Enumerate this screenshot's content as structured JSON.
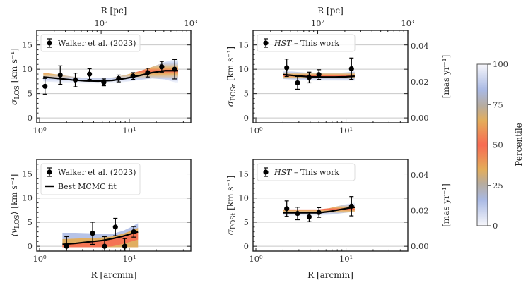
{
  "chart_data": [
    {
      "id": "sigma_los",
      "type": "scatter",
      "ylabel_main": "σ",
      "ylabel_sub": "LOS",
      "ylabel_unit": "[km s⁻¹]",
      "xlabel": "",
      "top_xlabel": "R [pc]",
      "xscale": "log",
      "xlim": [
        0.93,
        48.5
      ],
      "ylim": [
        -1,
        18
      ],
      "yticks": [
        0,
        5,
        10,
        15
      ],
      "xticks": [
        {
          "v": 1,
          "label": "10⁰"
        },
        {
          "v": 10,
          "label": "10¹"
        }
      ],
      "top_xticks": [
        {
          "v": 100,
          "label": "10²"
        },
        {
          "v": 1000,
          "label": "10³"
        }
      ],
      "top_scale_pc_per_arcmin": 20.6,
      "grid": true,
      "legend": [
        "Walker et al. (2023)"
      ],
      "legend_location": "top-left",
      "series": [
        {
          "name": "Walker et al. (2023)",
          "x": [
            1.15,
            1.7,
            2.5,
            3.6,
            5.2,
            7.6,
            11,
            16,
            23,
            32
          ],
          "y": [
            6.5,
            8.8,
            7.8,
            9.0,
            7.3,
            8.1,
            8.6,
            9.3,
            10.5,
            10.0
          ],
          "yerr": [
            1.6,
            1.9,
            1.4,
            1.1,
            0.7,
            0.7,
            0.7,
            0.9,
            1.1,
            2.0
          ]
        },
        {
          "name": "Best MCMC fit",
          "x": [
            1.1,
            1.6,
            2.3,
            3.2,
            4.5,
            6.5,
            9,
            13,
            18,
            25,
            35
          ],
          "y": [
            8.4,
            8.1,
            7.8,
            7.6,
            7.55,
            7.7,
            8.1,
            8.7,
            9.3,
            9.7,
            9.7
          ]
        }
      ],
      "band_halfwidth": [
        0.9,
        0.8,
        0.7,
        0.6,
        0.6,
        0.6,
        0.7,
        0.9,
        1.2,
        1.8,
        2.6
      ]
    },
    {
      "id": "sigma_posr",
      "type": "scatter",
      "ylabel_main": "σ",
      "ylabel_sub": "POSr",
      "ylabel_unit": "[km s⁻¹]",
      "right_ylabel": "[mas yr⁻¹]",
      "right_yticks": [
        {
          "v": 0.0,
          "label": "0.00"
        },
        {
          "v": 0.02,
          "label": "0.02"
        },
        {
          "v": 0.04,
          "label": "0.04"
        }
      ],
      "right_ylim": [
        -0.0027,
        0.0486
      ],
      "xlabel": "",
      "top_xlabel": "R [pc]",
      "xscale": "log",
      "xlim": [
        0.93,
        48.5
      ],
      "ylim": [
        -1,
        18
      ],
      "yticks": [
        0,
        5,
        10,
        15
      ],
      "xticks": [
        {
          "v": 1,
          "label": "10⁰"
        },
        {
          "v": 10,
          "label": "10¹"
        }
      ],
      "top_xticks": [
        {
          "v": 100,
          "label": "10²"
        },
        {
          "v": 1000,
          "label": "10³"
        }
      ],
      "top_scale_pc_per_arcmin": 20.6,
      "grid": true,
      "legend": [
        "HST – This work"
      ],
      "legend_location": "top-left",
      "series": [
        {
          "name": "HST – This work",
          "x": [
            2.2,
            2.9,
            3.9,
            5.0,
            11.5
          ],
          "y": [
            10.3,
            7.2,
            8.3,
            8.9,
            10.1
          ],
          "yerr": [
            1.8,
            1.3,
            1.1,
            1.0,
            2.2
          ]
        },
        {
          "name": "Best MCMC fit",
          "x": [
            2.0,
            3.0,
            4.0,
            5.5,
            7.5,
            10,
            12.5
          ],
          "y": [
            8.9,
            8.6,
            8.45,
            8.4,
            8.4,
            8.45,
            8.55
          ]
        }
      ],
      "band_halfwidth": [
        0.9,
        0.8,
        0.8,
        0.8,
        0.8,
        0.9,
        1.0
      ]
    },
    {
      "id": "mean_vlos",
      "type": "scatter",
      "ylabel_main": "⟨v",
      "ylabel_sub": "LOS",
      "ylabel_close": "⟩",
      "ylabel_unit": "[km s⁻¹]",
      "xlabel": "R [arcmin]",
      "xscale": "log",
      "xlim": [
        0.93,
        48.5
      ],
      "ylim": [
        -1,
        18
      ],
      "yticks": [
        0,
        5,
        10,
        15
      ],
      "xticks": [
        {
          "v": 1,
          "label": "10⁰"
        },
        {
          "v": 10,
          "label": "10¹"
        }
      ],
      "grid": true,
      "legend": [
        "Walker et al. (2023)",
        "Best MCMC fit"
      ],
      "legend_location": "top-left",
      "series": [
        {
          "name": "Walker et al. (2023)",
          "x": [
            2.0,
            3.9,
            5.3,
            7.0,
            8.9,
            11.2
          ],
          "y": [
            0.0,
            2.7,
            0.0,
            4.0,
            0.0,
            3.0
          ],
          "yerr": [
            2.0,
            2.3,
            2.0,
            1.8,
            1.6,
            1.1
          ]
        },
        {
          "name": "Best MCMC fit",
          "x": [
            1.8,
            2.5,
            3.5,
            5.0,
            6.5,
            8.5,
            10.5,
            12.5
          ],
          "y": [
            0.4,
            0.6,
            0.9,
            1.2,
            1.6,
            2.1,
            2.6,
            3.0
          ]
        }
      ],
      "band_low": [
        -0.2,
        -0.2,
        -0.2,
        -0.2,
        -0.2,
        -0.2,
        -0.2,
        -0.2
      ],
      "band_high": [
        2.8,
        2.8,
        2.7,
        2.6,
        2.6,
        3.2,
        4.0,
        4.8
      ]
    },
    {
      "id": "sigma_post",
      "type": "scatter",
      "ylabel_main": "σ",
      "ylabel_sub": "POSt",
      "ylabel_unit": "[km s⁻¹]",
      "right_ylabel": "[mas yr⁻¹]",
      "right_yticks": [
        {
          "v": 0.0,
          "label": "0.00"
        },
        {
          "v": 0.02,
          "label": "0.02"
        },
        {
          "v": 0.04,
          "label": "0.04"
        }
      ],
      "right_ylim": [
        -0.0027,
        0.0486
      ],
      "xlabel": "R [arcmin]",
      "xscale": "log",
      "xlim": [
        0.93,
        48.5
      ],
      "ylim": [
        -1,
        18
      ],
      "yticks": [
        0,
        5,
        10,
        15
      ],
      "xticks": [
        {
          "v": 1,
          "label": "10⁰"
        },
        {
          "v": 10,
          "label": "10¹"
        }
      ],
      "grid": true,
      "legend": [
        "HST – This work"
      ],
      "legend_location": "top-left",
      "series": [
        {
          "name": "HST – This work",
          "x": [
            2.2,
            2.9,
            3.9,
            5.0,
            11.5
          ],
          "y": [
            7.8,
            6.8,
            6.1,
            7.0,
            8.3
          ],
          "yerr": [
            1.6,
            1.3,
            1.0,
            1.0,
            2.0
          ]
        },
        {
          "name": "Best MCMC fit",
          "x": [
            2.0,
            3.0,
            4.0,
            5.0,
            6.5,
            8.5,
            10.5,
            12.5
          ],
          "y": [
            6.95,
            6.95,
            6.95,
            6.95,
            7.2,
            7.6,
            7.9,
            8.1
          ]
        }
      ],
      "band_halfwidth": [
        0.7,
        0.7,
        0.7,
        0.7,
        0.7,
        0.8,
        0.9,
        1.0
      ]
    }
  ],
  "colorbar": {
    "label": "Percentile",
    "ticks": [
      0,
      25,
      50,
      75,
      100
    ],
    "range": [
      0,
      100
    ],
    "colors": [
      "#f7f7fb",
      "#a9b9e4",
      "#e4ad5a",
      "#f86a52",
      "#e4ad5a",
      "#a9b9e4",
      "#f7f7fb"
    ]
  },
  "legend_labels": {
    "walker": "Walker et al. (2023)",
    "hst_italic": "HST",
    "hst_rest": " – This work",
    "best_fit": "Best MCMC fit"
  }
}
